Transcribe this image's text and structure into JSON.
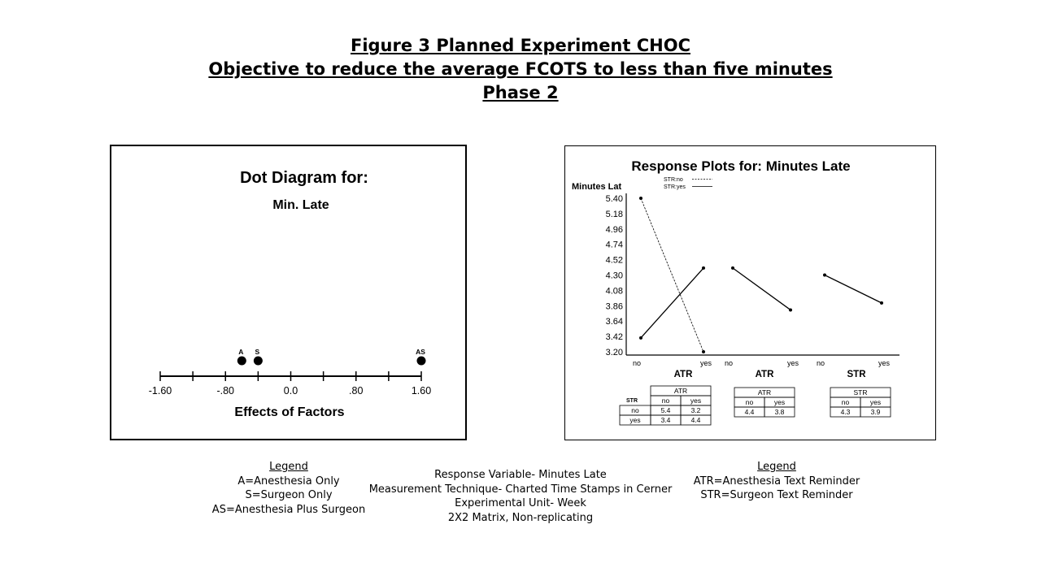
{
  "title": {
    "line1": "Figure 3   Planned Experiment CHOC",
    "line2": "Objective to reduce the average FCOTS to less than five minutes",
    "line3": "Phase 2"
  },
  "chart_data": [
    {
      "type": "scatter",
      "title": "Dot Diagram for:",
      "subtitle": "Min. Late",
      "xlabel": "Effects of Factors",
      "xlim": [
        -1.6,
        1.6
      ],
      "xticks": [
        -1.6,
        -1.2,
        -0.8,
        -0.4,
        0.0,
        0.4,
        0.8,
        1.2,
        1.6
      ],
      "xtick_labels": [
        "-1.60",
        "",
        "-.80",
        "",
        "0.0",
        "",
        ".80",
        "",
        "1.60"
      ],
      "points": [
        {
          "label": "A",
          "x": -0.6
        },
        {
          "label": "S",
          "x": -0.4
        },
        {
          "label": "AS",
          "x": 1.6
        }
      ]
    },
    {
      "type": "line",
      "title": "Response Plots for: Minutes Late",
      "ylabel": "Minutes Lat",
      "ylim": [
        3.2,
        5.4
      ],
      "yticks": [
        "5.40",
        "5.18",
        "4.96",
        "4.74",
        "4.52",
        "4.30",
        "4.08",
        "3.86",
        "3.64",
        "3.42",
        "3.20"
      ],
      "legend": [
        {
          "name": "STR:no",
          "style": "dashed"
        },
        {
          "name": "STR:yes",
          "style": "solid"
        }
      ],
      "panels": [
        {
          "xlabel": "ATR",
          "categories": [
            "no",
            "yes"
          ],
          "series": [
            {
              "name": "STR:no",
              "values": [
                5.4,
                3.2
              ],
              "style": "dashed"
            },
            {
              "name": "STR:yes",
              "values": [
                3.4,
                4.4
              ],
              "style": "solid"
            }
          ]
        },
        {
          "xlabel": "ATR",
          "categories": [
            "no",
            "yes"
          ],
          "series": [
            {
              "values": [
                4.4,
                3.8
              ],
              "style": "solid"
            }
          ]
        },
        {
          "xlabel": "STR",
          "categories": [
            "no",
            "yes"
          ],
          "series": [
            {
              "values": [
                4.3,
                3.9
              ],
              "style": "solid"
            }
          ]
        }
      ],
      "tables": [
        {
          "row_header": "STR",
          "col_header": "ATR",
          "cols": [
            "no",
            "yes"
          ],
          "rows": [
            {
              "label": "no",
              "values": [
                "5.4",
                "3.2"
              ]
            },
            {
              "label": "yes",
              "values": [
                "3.4",
                "4.4"
              ]
            }
          ]
        },
        {
          "col_header": "ATR",
          "cols": [
            "no",
            "yes"
          ],
          "rows": [
            {
              "values": [
                "4.4",
                "3.8"
              ]
            }
          ]
        },
        {
          "col_header": "STR",
          "cols": [
            "no",
            "yes"
          ],
          "rows": [
            {
              "values": [
                "4.3",
                "3.9"
              ]
            }
          ]
        }
      ]
    }
  ],
  "legend_left": {
    "header": "Legend",
    "items": [
      "A=Anesthesia Only",
      "S=Surgeon Only",
      "AS=Anesthesia Plus Surgeon"
    ]
  },
  "notes": {
    "items": [
      "Response Variable- Minutes Late",
      "Measurement Technique- Charted Time Stamps in Cerner",
      "Experimental Unit- Week",
      "2X2 Matrix, Non-replicating"
    ]
  },
  "legend_right": {
    "header": "Legend",
    "items": [
      "ATR=Anesthesia Text Reminder",
      "STR=Surgeon Text Reminder"
    ]
  }
}
